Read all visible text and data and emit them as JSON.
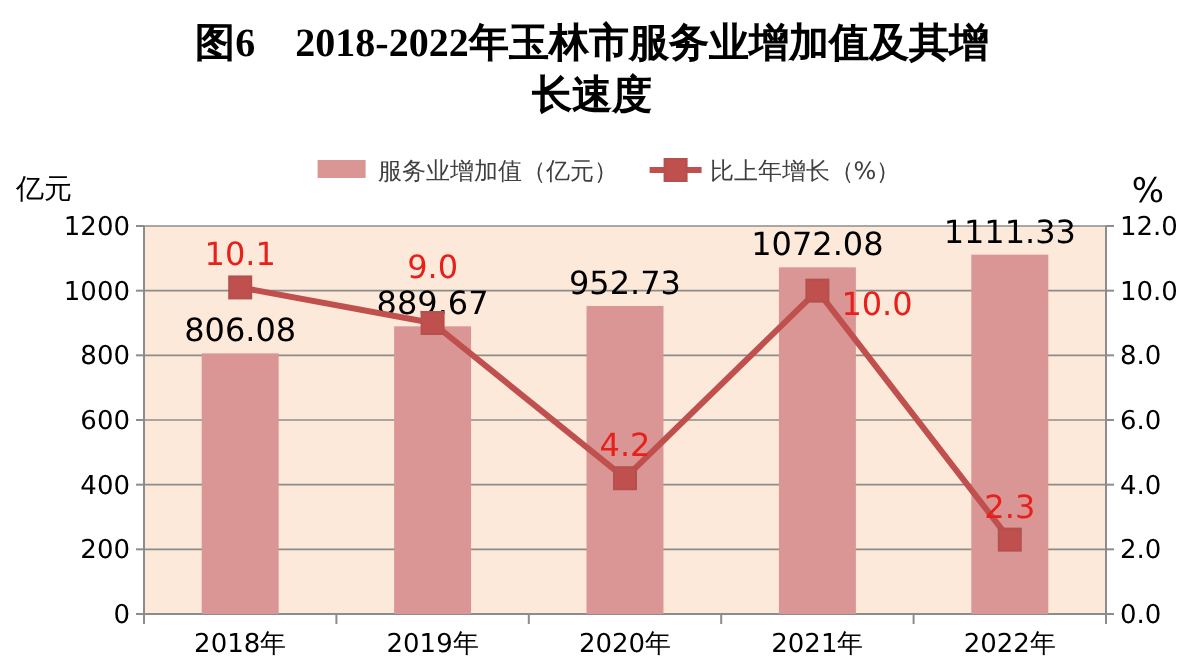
{
  "chart_data": {
    "type": "bar",
    "title": "图6　2018-2022年玉林市服务业增加值及其增长速度",
    "categories": [
      "2018年",
      "2019年",
      "2020年",
      "2021年",
      "2022年"
    ],
    "series": [
      {
        "name": "服务业增加值（亿元）",
        "color": "#d99694",
        "values": [
          806.08,
          889.67,
          952.73,
          1072.08,
          1111.33
        ],
        "value_labels": [
          "806.08",
          "889.67",
          "952.73",
          "1072.08",
          "1111.33"
        ]
      },
      {
        "name": "比上年增长（%）",
        "type": "line",
        "axis": "y2",
        "color": "#c0504d",
        "marker": "square",
        "values": [
          10.1,
          9.0,
          4.2,
          10.0,
          2.3
        ],
        "value_labels": [
          "10.1",
          "9.0",
          "4.2",
          "10.0",
          "2.3"
        ]
      }
    ],
    "ylabel": "亿元",
    "y2label": "%",
    "ylim": [
      0,
      1200
    ],
    "yticks": [
      0,
      200,
      400,
      600,
      800,
      1000,
      1200
    ],
    "y2lim": [
      0,
      12
    ],
    "y2ticks": [
      {
        "value": 0,
        "label": "0.0"
      },
      {
        "value": 2,
        "label": "2.0"
      },
      {
        "value": 4,
        "label": "4.0"
      },
      {
        "value": 6,
        "label": "6.0"
      },
      {
        "value": 8,
        "label": "8.0"
      },
      {
        "value": 10,
        "label": "10.0"
      },
      {
        "value": 12,
        "label": "12.0"
      }
    ],
    "grid": "y",
    "legend": "top"
  }
}
